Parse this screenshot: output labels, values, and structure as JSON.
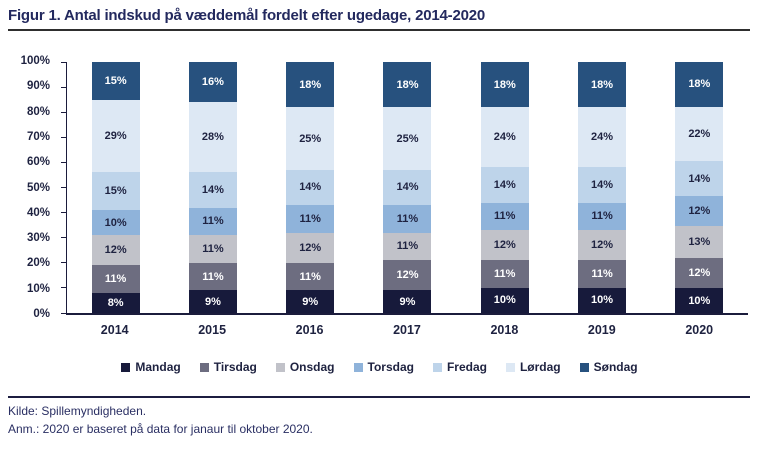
{
  "header": {
    "title": "Figur 1. Antal indskud på væddemål fordelt efter ugedage, 2014-2020"
  },
  "footer": {
    "source": "Kilde: Spillemyndigheden.",
    "note": "Anm.: 2020 er baseret på data for janaur til oktober 2020."
  },
  "colors": {
    "title_text": "#23295e",
    "axis": "#1b1c3c",
    "tick_text": "#1e2240",
    "title_rule": "#2e2e2e",
    "footer_rule": "#1c1d40"
  },
  "chart_data": {
    "type": "bar",
    "stacked": true,
    "percent": true,
    "title": "Figur 1. Antal indskud på væddemål fordelt efter ugedage, 2014-2020",
    "categories": [
      "2014",
      "2015",
      "2016",
      "2017",
      "2018",
      "2019",
      "2020"
    ],
    "series": [
      {
        "name": "Mandag",
        "color": "#171a3b",
        "label_color": "#ffffff",
        "values": [
          8,
          9,
          9,
          9,
          10,
          10,
          10
        ]
      },
      {
        "name": "Tirsdag",
        "color": "#6d6d80",
        "label_color": "#ffffff",
        "values": [
          11,
          11,
          11,
          12,
          11,
          11,
          12
        ]
      },
      {
        "name": "Onsdag",
        "color": "#c1c2c9",
        "label_color": "#1e2240",
        "values": [
          12,
          11,
          12,
          11,
          12,
          12,
          13
        ]
      },
      {
        "name": "Torsdag",
        "color": "#8fb3da",
        "label_color": "#1e2240",
        "values": [
          10,
          11,
          11,
          11,
          11,
          11,
          12
        ]
      },
      {
        "name": "Fredag",
        "color": "#bed4ea",
        "label_color": "#1e2240",
        "values": [
          15,
          14,
          14,
          14,
          14,
          14,
          14
        ]
      },
      {
        "name": "Lørdag",
        "color": "#dde8f4",
        "label_color": "#1e2240",
        "values": [
          29,
          28,
          25,
          25,
          24,
          24,
          22
        ]
      },
      {
        "name": "Søndag",
        "color": "#27517e",
        "label_color": "#ffffff",
        "values": [
          15,
          16,
          18,
          18,
          18,
          18,
          18
        ]
      }
    ],
    "value_suffix": "%",
    "ylabel": "",
    "xlabel": "",
    "ylim": [
      0,
      100
    ],
    "y_tick_step": 10,
    "y_ticks": [
      "0%",
      "10%",
      "20%",
      "30%",
      "40%",
      "50%",
      "60%",
      "70%",
      "80%",
      "90%",
      "100%"
    ],
    "grid": false,
    "legend_position": "bottom"
  }
}
